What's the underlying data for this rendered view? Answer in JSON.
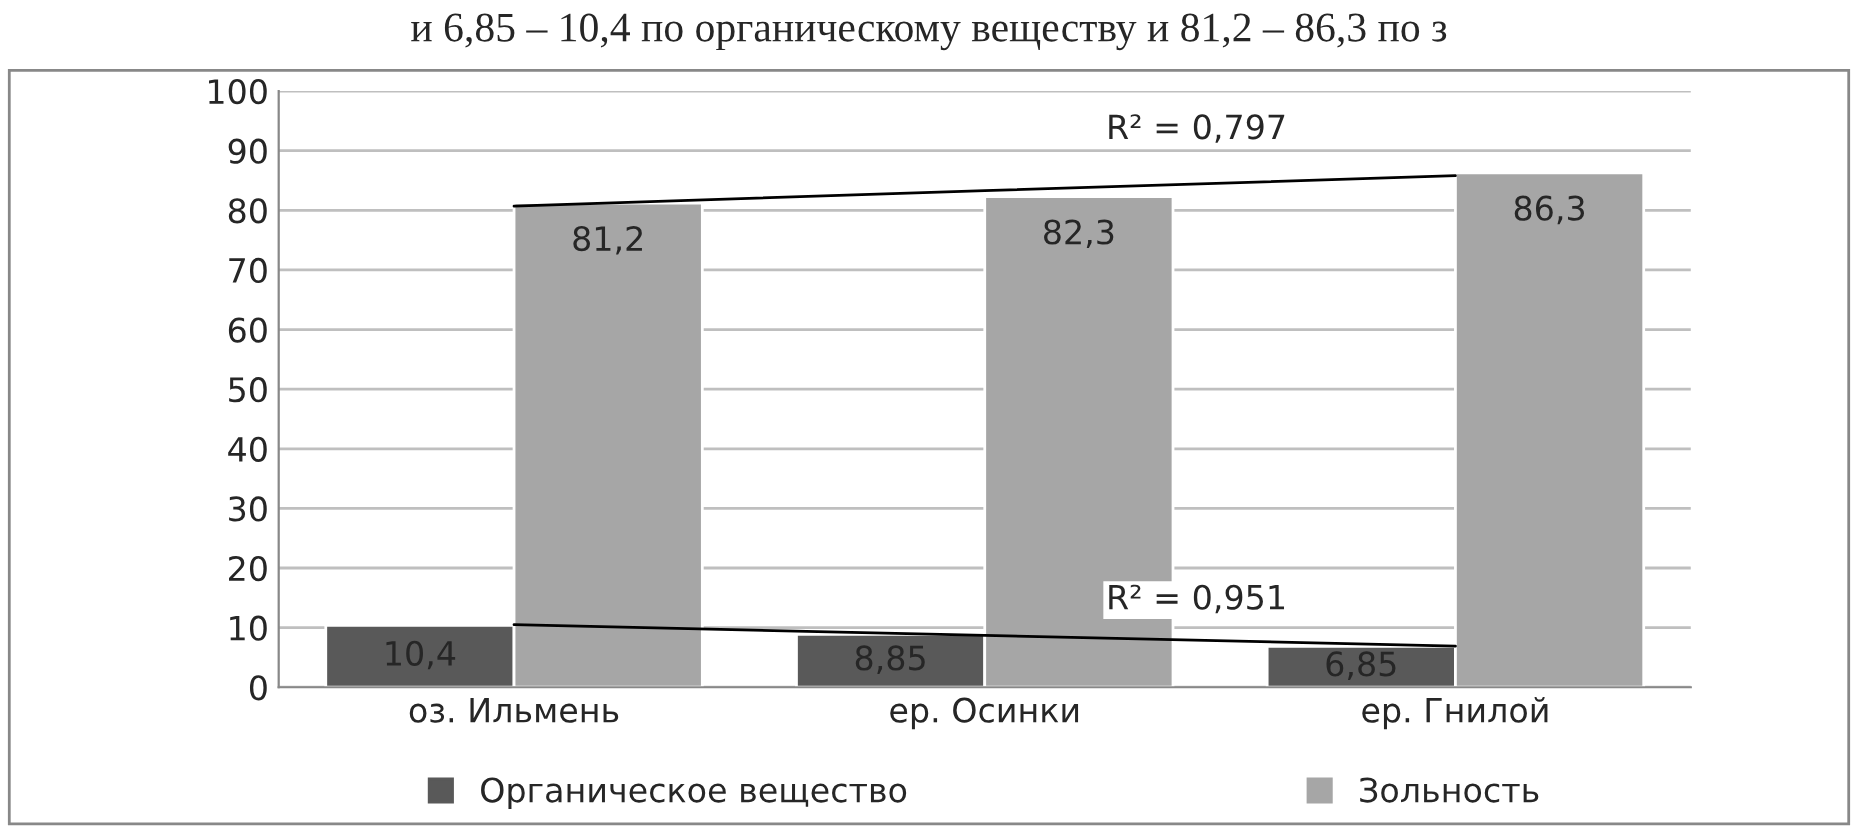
{
  "chart_data": {
    "type": "bar",
    "categories": [
      "оз. Ильмень",
      "ер. Осинки",
      "ер. Гнилой"
    ],
    "series": [
      {
        "name": "Органическое вещество",
        "color": "#595959",
        "values": [
          10.4,
          8.85,
          6.85
        ],
        "value_labels": [
          "10,4",
          "8,85",
          "6,85"
        ]
      },
      {
        "name": "Зольность",
        "color": "#a6a6a6",
        "values": [
          81.2,
          82.3,
          86.3
        ],
        "value_labels": [
          "81,2",
          "82,3",
          "86,3"
        ]
      },
      {
        "type": "line",
        "color": "#000000",
        "values": [
          80.7,
          83.3,
          85.8
        ]
      },
      {
        "type": "line",
        "color": "#000000",
        "values": [
          10.5,
          8.7,
          6.9
        ]
      }
    ],
    "ylim": [
      0,
      100
    ],
    "yticks": [
      0,
      10,
      20,
      30,
      40,
      50,
      60,
      70,
      80,
      90,
      100
    ],
    "grid": "y",
    "legend": "bottom",
    "annotations": [
      "и 6,85 – 10,4 по органическому веществу и 81,2 – 86,3 по з",
      "R² = 0,797",
      "R² = 0,951"
    ]
  }
}
